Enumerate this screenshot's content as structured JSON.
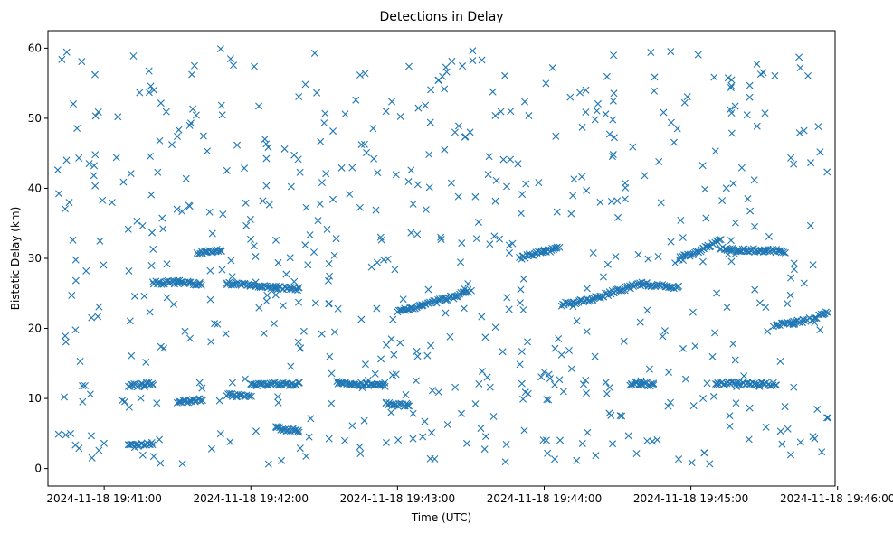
{
  "chart_data": {
    "type": "scatter",
    "title": "Detections in Delay",
    "xlabel": "Time (UTC)",
    "ylabel": "Bistatic Delay (km)",
    "marker": "x",
    "color": "#1f77b4",
    "grid": false,
    "x_axis_type": "time",
    "xlim": [
      "2024-11-18 19:40:37",
      "2024-11-18 19:45:59"
    ],
    "ylim": [
      -2.5,
      62.5
    ],
    "x_ticks": [
      "2024-11-18 19:41:00",
      "2024-11-18 19:42:00",
      "2024-11-18 19:43:00",
      "2024-11-18 19:44:00",
      "2024-11-18 19:45:00",
      "2024-11-18 19:46:00"
    ],
    "y_ticks": [
      "0",
      "10",
      "20",
      "30",
      "40",
      "50",
      "60"
    ],
    "y_tick_values": [
      0,
      10,
      20,
      30,
      40,
      50,
      60
    ],
    "series": [
      {
        "tracks": [
          {
            "t": [
              "2024-11-18 19:43:00",
              "2024-11-18 19:43:10",
              "2024-11-18 19:43:20",
              "2024-11-18 19:43:30"
            ],
            "delay": [
              22.5,
              23.3,
              24.2,
              25.3
            ]
          },
          {
            "t": [
              "2024-11-18 19:43:50",
              "2024-11-18 19:44:00",
              "2024-11-18 19:44:06"
            ],
            "delay": [
              30.0,
              31.0,
              31.4
            ]
          },
          {
            "t": [
              "2024-11-18 19:44:07",
              "2024-11-18 19:44:20",
              "2024-11-18 19:44:30",
              "2024-11-18 19:44:40"
            ],
            "delay": [
              23.4,
              24.2,
              25.4,
              26.4
            ]
          },
          {
            "t": [
              "2024-11-18 19:44:40",
              "2024-11-18 19:44:50",
              "2024-11-18 19:44:55"
            ],
            "delay": [
              26.4,
              26.0,
              25.8
            ]
          },
          {
            "t": [
              "2024-11-18 19:44:55",
              "2024-11-18 19:45:05",
              "2024-11-18 19:45:12"
            ],
            "delay": [
              30.0,
              31.3,
              32.7
            ]
          },
          {
            "t": [
              "2024-11-18 19:45:12",
              "2024-11-18 19:45:20",
              "2024-11-18 19:45:30",
              "2024-11-18 19:45:38"
            ],
            "delay": [
              31.5,
              31.2,
              31.1,
              31.0
            ]
          },
          {
            "t": [
              "2024-11-18 19:45:34",
              "2024-11-18 19:45:42",
              "2024-11-18 19:45:50",
              "2024-11-18 19:45:56"
            ],
            "delay": [
              20.5,
              20.8,
              21.4,
              22.2
            ]
          },
          {
            "t": [
              "2024-11-18 19:41:50",
              "2024-11-18 19:42:00",
              "2024-11-18 19:42:10",
              "2024-11-18 19:42:20"
            ],
            "delay": [
              26.5,
              26.1,
              25.8,
              25.6
            ]
          },
          {
            "t": [
              "2024-11-18 19:41:20",
              "2024-11-18 19:41:30",
              "2024-11-18 19:41:40"
            ],
            "delay": [
              26.5,
              26.6,
              26.4
            ]
          },
          {
            "t": [
              "2024-11-18 19:41:38",
              "2024-11-18 19:41:48"
            ],
            "delay": [
              30.8,
              31.2
            ]
          },
          {
            "t": [
              "2024-11-18 19:41:10",
              "2024-11-18 19:41:20"
            ],
            "delay": [
              11.8,
              12.1
            ]
          },
          {
            "t": [
              "2024-11-18 19:41:30",
              "2024-11-18 19:41:40"
            ],
            "delay": [
              9.4,
              9.9
            ]
          },
          {
            "t": [
              "2024-11-18 19:41:50",
              "2024-11-18 19:42:00"
            ],
            "delay": [
              10.5,
              10.2
            ]
          },
          {
            "t": [
              "2024-11-18 19:42:00",
              "2024-11-18 19:42:20"
            ],
            "delay": [
              12.0,
              12.1
            ]
          },
          {
            "t": [
              "2024-11-18 19:42:35",
              "2024-11-18 19:42:55"
            ],
            "delay": [
              12.3,
              11.8
            ]
          },
          {
            "t": [
              "2024-11-18 19:42:55",
              "2024-11-18 19:43:05"
            ],
            "delay": [
              9.2,
              9.0
            ]
          },
          {
            "t": [
              "2024-11-18 19:44:35",
              "2024-11-18 19:44:45"
            ],
            "delay": [
              12.1,
              12.0
            ]
          },
          {
            "t": [
              "2024-11-18 19:45:10",
              "2024-11-18 19:45:35"
            ],
            "delay": [
              12.2,
              12.0
            ]
          },
          {
            "t": [
              "2024-11-18 19:42:10",
              "2024-11-18 19:42:20"
            ],
            "delay": [
              5.8,
              5.3
            ]
          },
          {
            "t": [
              "2024-11-18 19:41:10",
              "2024-11-18 19:41:20"
            ],
            "delay": [
              3.2,
              3.5
            ]
          }
        ],
        "scatter": {
          "t_start": "2024-11-18 19:40:41",
          "t_end": "2024-11-18 19:45:57",
          "delay_range": [
            0.5,
            60
          ],
          "count": 620
        }
      }
    ]
  }
}
